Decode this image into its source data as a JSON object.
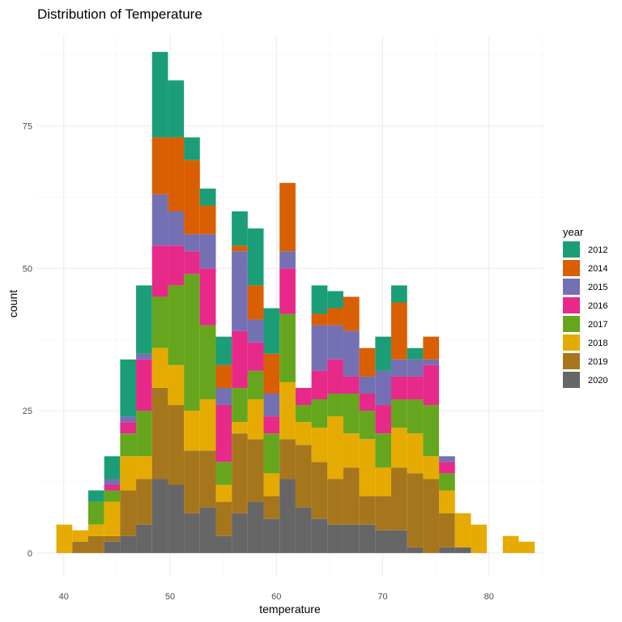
{
  "chart_data": {
    "type": "bar",
    "stacked": true,
    "title": "Distribution of Temperature",
    "xlabel": "temperature",
    "ylabel": "count",
    "xlim": [
      37.5,
      85.2
    ],
    "ylim": [
      -4,
      91
    ],
    "x_ticks": [
      40,
      50,
      60,
      70,
      80
    ],
    "y_ticks": [
      0,
      25,
      50,
      75
    ],
    "grid": true,
    "legend": {
      "title": "year",
      "position": "right"
    },
    "bins": [
      [
        39.3,
        40.8
      ],
      [
        40.8,
        42.3
      ],
      [
        42.3,
        43.8
      ],
      [
        43.8,
        45.3
      ],
      [
        45.3,
        46.8
      ],
      [
        46.8,
        48.3
      ],
      [
        48.3,
        49.8
      ],
      [
        49.8,
        51.3
      ],
      [
        51.3,
        52.8
      ],
      [
        52.8,
        54.3
      ],
      [
        54.3,
        55.8
      ],
      [
        55.8,
        57.3
      ],
      [
        57.3,
        58.8
      ],
      [
        58.8,
        60.3
      ],
      [
        60.3,
        61.8
      ],
      [
        61.8,
        63.3
      ],
      [
        63.3,
        64.8
      ],
      [
        64.8,
        66.3
      ],
      [
        66.3,
        67.8
      ],
      [
        67.8,
        69.3
      ],
      [
        69.3,
        70.8
      ],
      [
        70.8,
        72.3
      ],
      [
        72.3,
        73.8
      ],
      [
        73.8,
        75.3
      ],
      [
        75.3,
        76.8
      ],
      [
        76.8,
        78.3
      ],
      [
        78.3,
        79.8
      ],
      [
        79.8,
        81.3
      ],
      [
        81.3,
        82.8
      ],
      [
        82.8,
        84.3
      ]
    ],
    "series": [
      {
        "name": "2020",
        "color": "#666666",
        "values": [
          0,
          0,
          0,
          2,
          3,
          5,
          13,
          12,
          7,
          8,
          3,
          7,
          9,
          6,
          13,
          8,
          6,
          5,
          5,
          5,
          4,
          4,
          1,
          0,
          1,
          1,
          0,
          0,
          0,
          0
        ]
      },
      {
        "name": "2019",
        "color": "#A6761D",
        "values": [
          0,
          2,
          3,
          1,
          8,
          8,
          16,
          14,
          11,
          10,
          6,
          14,
          11,
          4,
          7,
          11,
          10,
          8,
          10,
          5,
          6,
          11,
          13,
          13,
          6,
          0,
          0,
          0,
          0,
          0
        ]
      },
      {
        "name": "2018",
        "color": "#E6AB02",
        "values": [
          5,
          2,
          2,
          6,
          6,
          4,
          7,
          7,
          7,
          9,
          3,
          2,
          7,
          4,
          10,
          4,
          6,
          11,
          6,
          10,
          5,
          7,
          7,
          4,
          4,
          6,
          5,
          0,
          3,
          2
        ]
      },
      {
        "name": "2017",
        "color": "#66A61E",
        "values": [
          0,
          0,
          4,
          2,
          4,
          8,
          9,
          14,
          24,
          13,
          4,
          6,
          5,
          7,
          12,
          3,
          5,
          4,
          7,
          5,
          6,
          5,
          6,
          9,
          3,
          0,
          0,
          0,
          0,
          0
        ]
      },
      {
        "name": "2016",
        "color": "#E7298A",
        "values": [
          0,
          0,
          0,
          1,
          2,
          9,
          9,
          7,
          4,
          10,
          10,
          10,
          5,
          3,
          8,
          3,
          5,
          6,
          3,
          3,
          5,
          4,
          4,
          7,
          2,
          0,
          0,
          0,
          0,
          0
        ]
      },
      {
        "name": "2015",
        "color": "#7570B3",
        "values": [
          0,
          0,
          0,
          1,
          1,
          1,
          9,
          6,
          3,
          6,
          3,
          14,
          4,
          4,
          3,
          0,
          8,
          6,
          8,
          3,
          6,
          3,
          3,
          1,
          1,
          0,
          0,
          0,
          0,
          0
        ]
      },
      {
        "name": "2014",
        "color": "#D95F02",
        "values": [
          0,
          0,
          0,
          0,
          0,
          0,
          10,
          13,
          13,
          5,
          4,
          1,
          6,
          7,
          12,
          0,
          2,
          3,
          6,
          5,
          0,
          10,
          0,
          4,
          0,
          0,
          0,
          0,
          0,
          0
        ]
      },
      {
        "name": "2012",
        "color": "#1B9E77",
        "values": [
          0,
          0,
          2,
          4,
          10,
          12,
          15,
          10,
          4,
          3,
          5,
          6,
          10,
          8,
          0,
          0,
          5,
          3,
          0,
          0,
          6,
          3,
          2,
          0,
          0,
          0,
          0,
          0,
          0,
          0
        ]
      }
    ]
  }
}
